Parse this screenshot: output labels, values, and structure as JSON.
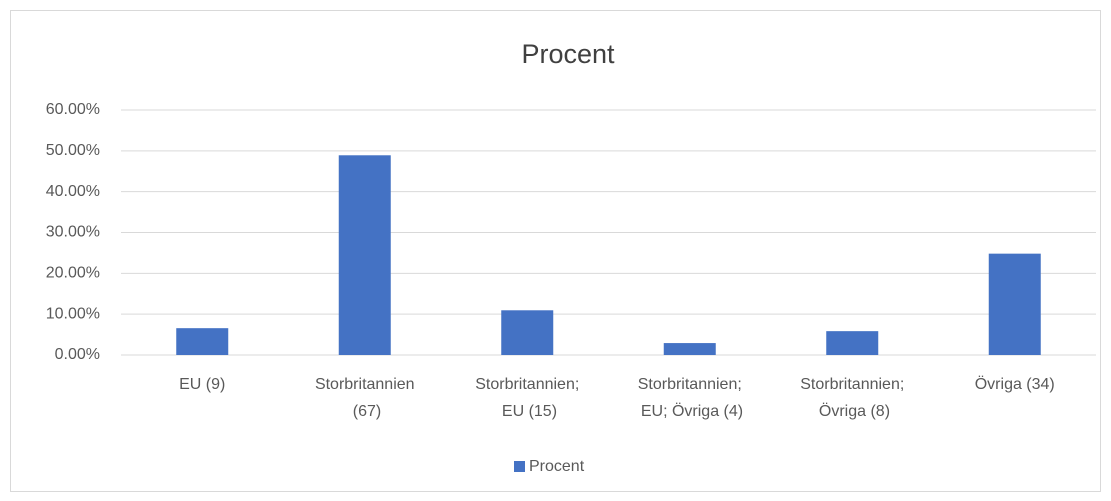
{
  "chart_data": {
    "type": "bar",
    "title": "Procent",
    "categories": [
      "EU (9)",
      "Storbritannien (67)",
      "Storbritannien; EU (15)",
      "Storbritannien; EU; Övriga (4)",
      "Storbritannien; Övriga (8)",
      "Övriga (34)"
    ],
    "series": [
      {
        "name": "Procent",
        "color": "#4472c4",
        "values": [
          6.57,
          48.91,
          10.95,
          2.92,
          5.84,
          24.82
        ]
      }
    ],
    "ylim": [
      0,
      60
    ],
    "yticks": [
      {
        "value": 0,
        "label": "0.00%"
      },
      {
        "value": 10,
        "label": "10.00%"
      },
      {
        "value": 20,
        "label": "20.00%"
      },
      {
        "value": 30,
        "label": "30.00%"
      },
      {
        "value": 40,
        "label": "40.00%"
      },
      {
        "value": 50,
        "label": "50.00%"
      },
      {
        "value": 60,
        "label": "60.00%"
      }
    ],
    "grid": true,
    "legend": "bottom"
  }
}
